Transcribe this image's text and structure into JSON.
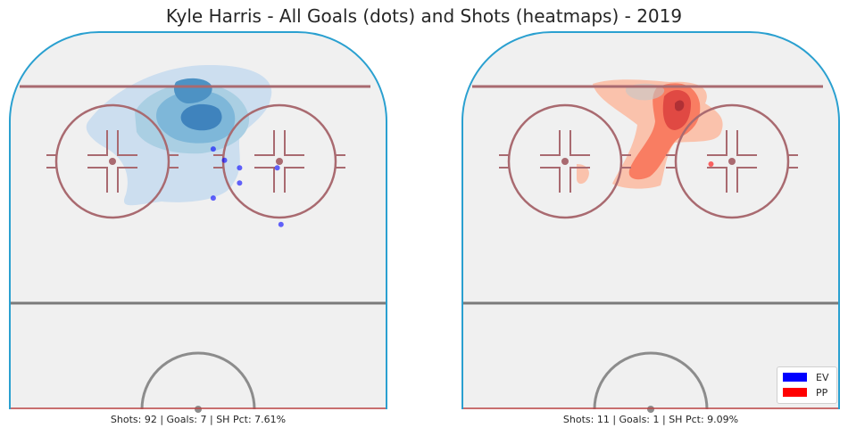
{
  "chart_data": {
    "type": "scatter",
    "title": "Kyle Harris - All Goals (dots) and Shots (heatmaps) - 2019",
    "legend": {
      "placement": "bottom-right",
      "entries": [
        {
          "label": "EV",
          "color": "#0000ff"
        },
        {
          "label": "PP",
          "color": "#ff0000"
        }
      ]
    },
    "grid": false,
    "panels": [
      {
        "name": "EV",
        "caption": "Shots: 92 | Goals: 7 | SH Pct: 7.61%",
        "shots": 92,
        "goals_count": 7,
        "sh_pct": 7.61,
        "heatmap_colormap": "Blues",
        "goals": [
          {
            "x": 54,
            "y": 69
          },
          {
            "x": 57,
            "y": 66
          },
          {
            "x": 61,
            "y": 64
          },
          {
            "x": 71,
            "y": 64
          },
          {
            "x": 61,
            "y": 60
          },
          {
            "x": 54,
            "y": 56
          },
          {
            "x": 72,
            "y": 49
          }
        ]
      },
      {
        "name": "PP",
        "caption": "Shots: 11 | Goals: 1 | SH Pct: 9.09%",
        "shots": 11,
        "goals_count": 1,
        "sh_pct": 9.09,
        "heatmap_colormap": "Reds",
        "goals": [
          {
            "x": 66,
            "y": 65
          }
        ]
      }
    ]
  }
}
